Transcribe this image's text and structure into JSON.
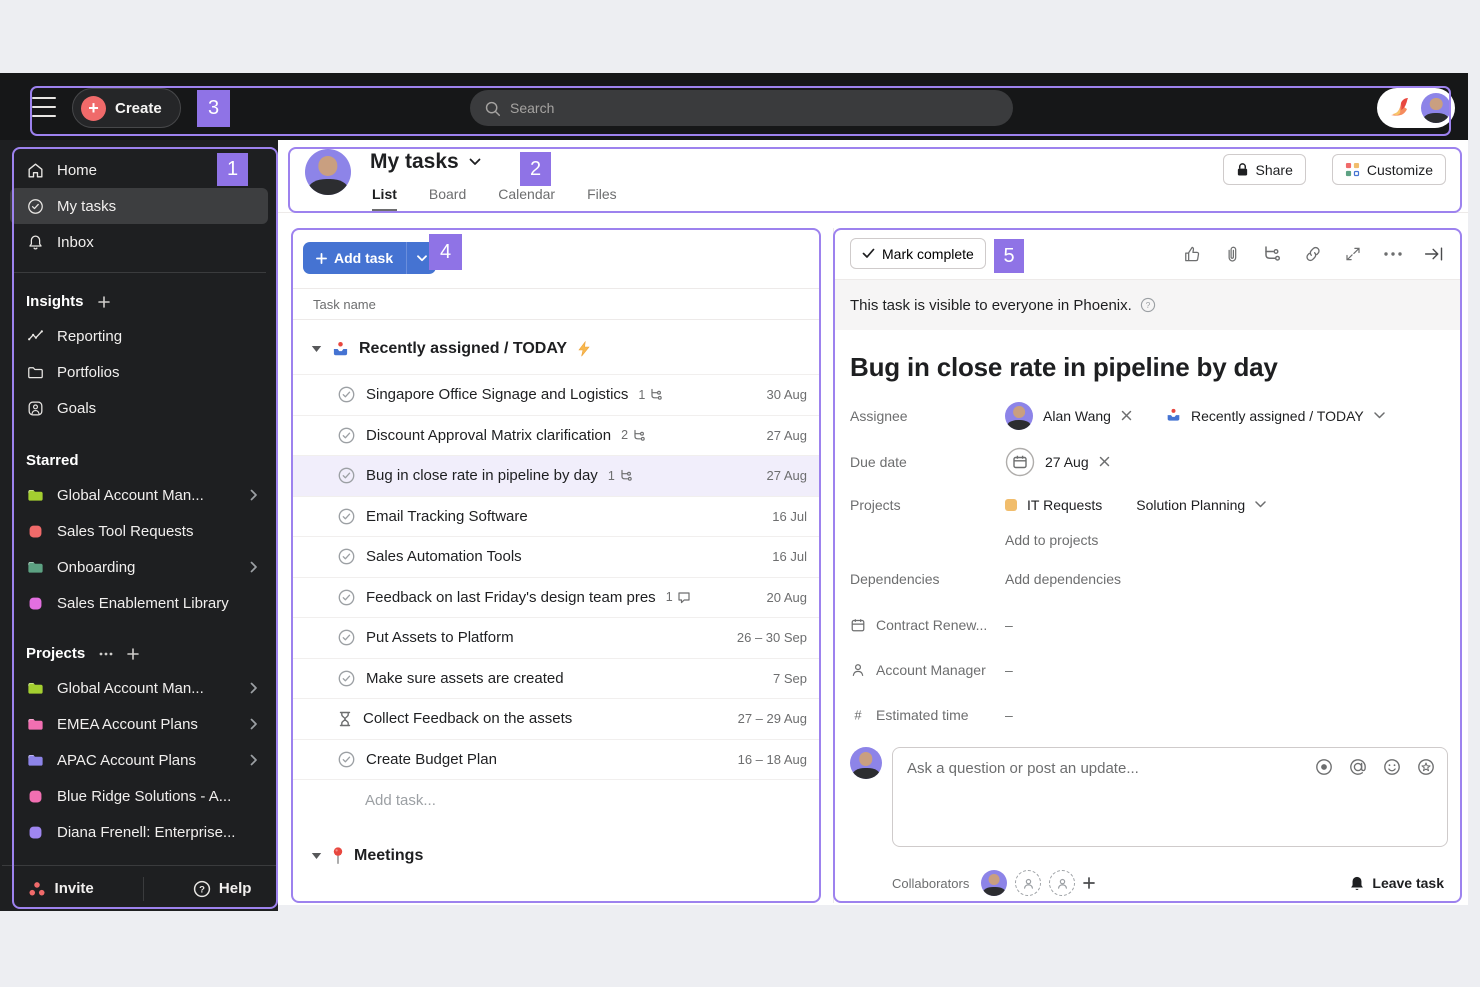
{
  "annotations": {
    "b1": "1",
    "b2": "2",
    "b3": "3",
    "b4": "4",
    "b5": "5"
  },
  "topbar": {
    "create_label": "Create",
    "search_placeholder": "Search"
  },
  "sidebar": {
    "nav": [
      {
        "label": "Home",
        "icon": "home",
        "selected": false
      },
      {
        "label": "My tasks",
        "icon": "check-circle",
        "selected": true
      },
      {
        "label": "Inbox",
        "icon": "bell",
        "selected": false
      }
    ],
    "insights_header": "Insights",
    "insights_items": [
      {
        "label": "Reporting",
        "icon": "reporting"
      },
      {
        "label": "Portfolios",
        "icon": "portfolios"
      },
      {
        "label": "Goals",
        "icon": "goals"
      }
    ],
    "starred_header": "Starred",
    "starred_items": [
      {
        "label": "Global Account Man...",
        "icon": "folder",
        "color": "#a4cf30",
        "chevron": true
      },
      {
        "label": "Sales Tool Requests",
        "icon": "square",
        "color": "#f06a6a",
        "chevron": false
      },
      {
        "label": "Onboarding",
        "icon": "folder",
        "color": "#5da283",
        "chevron": true
      },
      {
        "label": "Sales Enablement Library",
        "icon": "square",
        "color": "#e36fe0",
        "chevron": false
      }
    ],
    "projects_header": "Projects",
    "projects_items": [
      {
        "label": "Global Account Man...",
        "icon": "folder",
        "color": "#a4cf30",
        "chevron": true
      },
      {
        "label": "EMEA Account Plans",
        "icon": "folder",
        "color": "#f26fb2",
        "chevron": true
      },
      {
        "label": "APAC Account Plans",
        "icon": "folder",
        "color": "#8d84e8",
        "chevron": true
      },
      {
        "label": "Blue Ridge Solutions - A...",
        "icon": "square",
        "color": "#f26fb2",
        "chevron": false
      },
      {
        "label": "Diana Frenell: Enterprise...",
        "icon": "square",
        "color": "#9f86f0",
        "chevron": false
      }
    ],
    "invite_label": "Invite",
    "help_label": "Help"
  },
  "header": {
    "title": "My tasks",
    "tabs": [
      {
        "label": "List",
        "active": true
      },
      {
        "label": "Board",
        "active": false
      },
      {
        "label": "Calendar",
        "active": false
      },
      {
        "label": "Files",
        "active": false
      }
    ],
    "share_label": "Share",
    "customize_label": "Customize"
  },
  "task_list": {
    "add_task_label": "Add task",
    "column_header": "Task name",
    "section_title": "Recently assigned / TODAY",
    "rows": [
      {
        "title": "Singapore Office Signage and Logistics",
        "badge_count": "1",
        "badge_type": "subtask",
        "date": "30 Aug",
        "state": "check",
        "selected": false
      },
      {
        "title": "Discount Approval Matrix clarification",
        "badge_count": "2",
        "badge_type": "subtask",
        "date": "27 Aug",
        "state": "check",
        "selected": false
      },
      {
        "title": "Bug in close rate in pipeline by day",
        "badge_count": "1",
        "badge_type": "subtask",
        "date": "27 Aug",
        "state": "check",
        "selected": true
      },
      {
        "title": "Email Tracking Software",
        "badge_count": "",
        "badge_type": "",
        "date": "16 Jul",
        "state": "check",
        "selected": false
      },
      {
        "title": "Sales Automation Tools",
        "badge_count": "",
        "badge_type": "",
        "date": "16 Jul",
        "state": "check",
        "selected": false
      },
      {
        "title": "Feedback on last Friday's design team pres",
        "badge_count": "1",
        "badge_type": "comment",
        "date": "20 Aug",
        "state": "check",
        "selected": false
      },
      {
        "title": "Put Assets to Platform",
        "badge_count": "",
        "badge_type": "",
        "date": "26 – 30 Sep",
        "state": "check",
        "selected": false
      },
      {
        "title": "Make sure assets are created",
        "badge_count": "",
        "badge_type": "",
        "date": "7 Sep",
        "state": "check",
        "selected": false
      },
      {
        "title": "Collect Feedback on the assets",
        "badge_count": "",
        "badge_type": "",
        "date": "27 – 29 Aug",
        "state": "hourglass",
        "selected": false
      },
      {
        "title": "Create Budget Plan",
        "badge_count": "",
        "badge_type": "",
        "date": "16 – 18 Aug",
        "state": "check",
        "selected": false
      }
    ],
    "add_task_row": "Add task...",
    "meetings_title": "Meetings"
  },
  "detail": {
    "mark_complete_label": "Mark complete",
    "banner_text": "This task is visible to everyone in Phoenix.",
    "title": "Bug in close rate in pipeline by day",
    "assignee_label": "Assignee",
    "assignee_name": "Alan Wang",
    "assignee_section": "Recently assigned / TODAY",
    "due_label": "Due date",
    "due_value": "27 Aug",
    "projects_label": "Projects",
    "project_name": "IT Requests",
    "project_color": "#f1bd6c",
    "project_section": "Solution Planning",
    "add_to_projects": "Add to projects",
    "dependencies_label": "Dependencies",
    "add_dependencies": "Add dependencies",
    "custom_fields": [
      {
        "label": "Contract Renew...",
        "value": "–",
        "icon": "calendar"
      },
      {
        "label": "Account Manager",
        "value": "–",
        "icon": "person"
      },
      {
        "label": "Estimated time",
        "value": "–",
        "icon": "hash"
      }
    ],
    "comment_placeholder": "Ask a question or post an update...",
    "collaborators_label": "Collaborators",
    "leave_task_label": "Leave task"
  },
  "colors": {
    "annotation_fill": "#8f73e6",
    "annotation_border": "#9d82ee",
    "accent_blue": "#4573d2",
    "dark": "#1e1f21"
  }
}
